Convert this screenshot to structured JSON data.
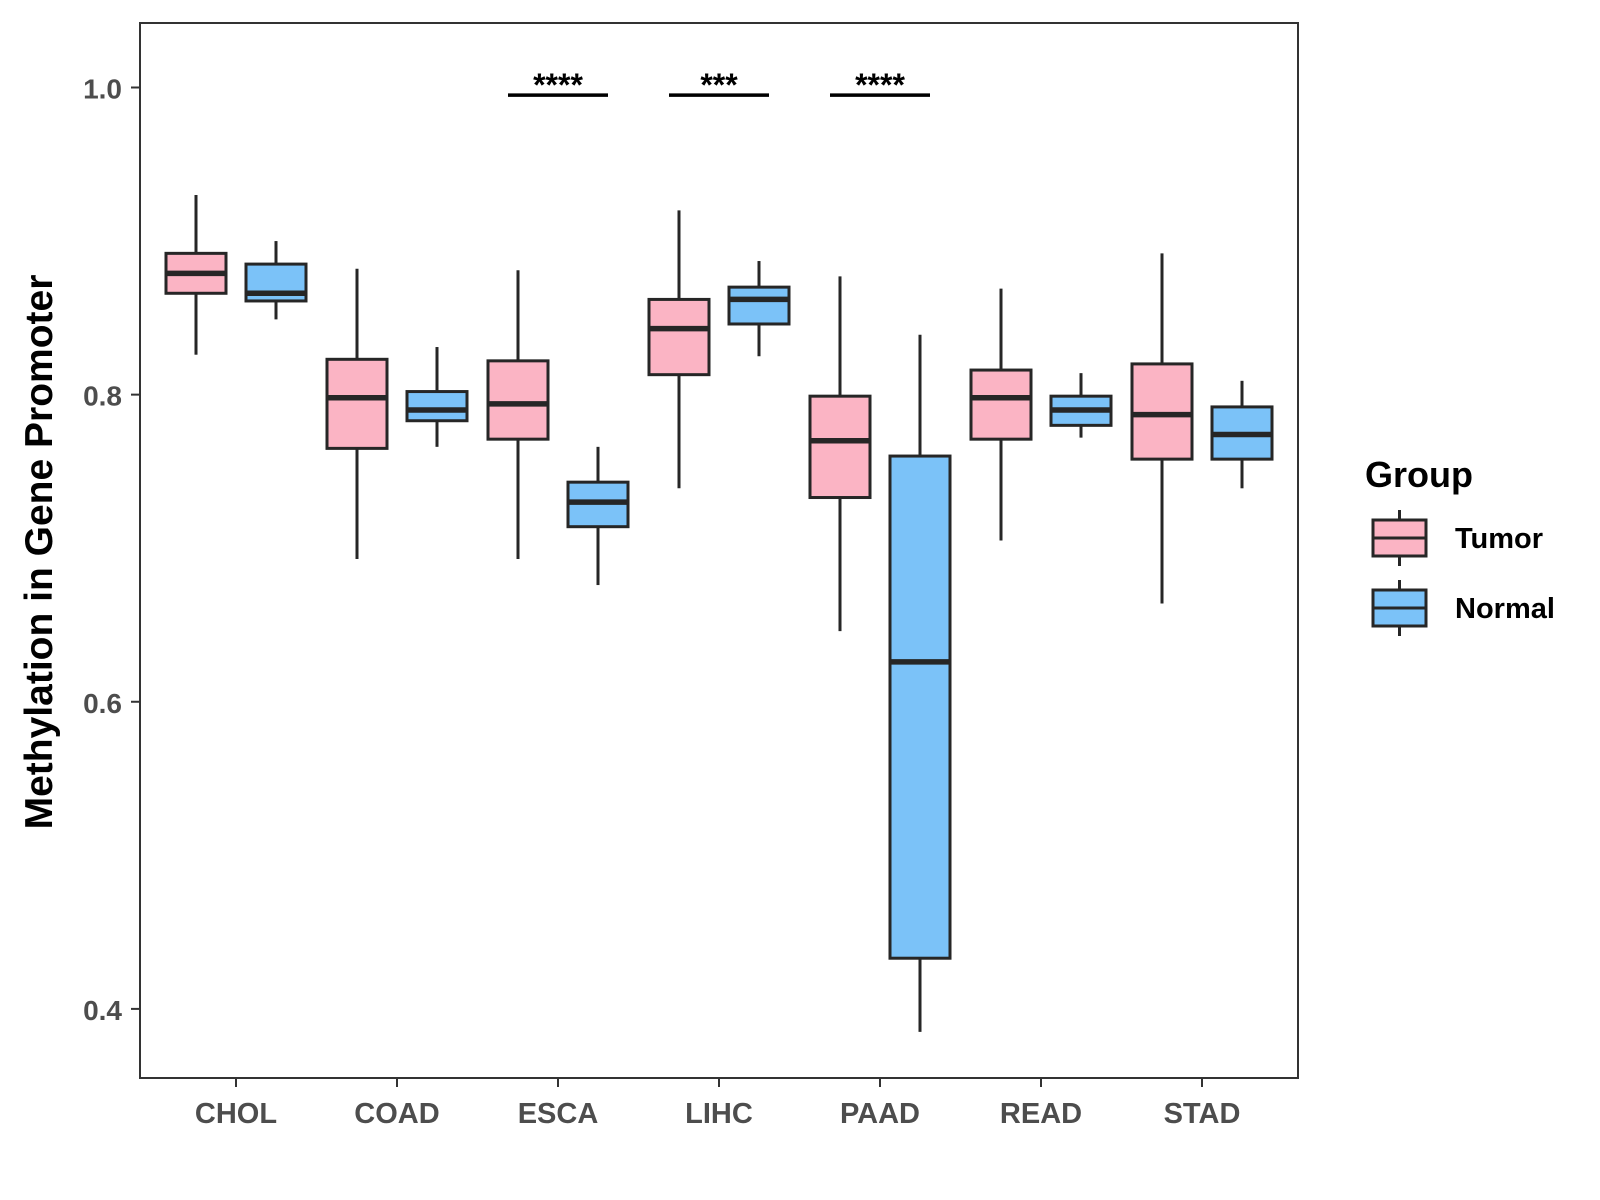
{
  "chart_data": {
    "type": "box",
    "xlabel": "",
    "ylabel": "Methylation in Gene Promoter",
    "ylim": [
      0.355,
      1.042
    ],
    "yticks": [
      0.4,
      0.6,
      0.8,
      1.0
    ],
    "ytick_labels": [
      "0.4",
      "0.6",
      "0.8",
      "1.0"
    ],
    "grid": false,
    "categories": [
      "CHOL",
      "COAD",
      "ESCA",
      "LIHC",
      "PAAD",
      "READ",
      "STAD"
    ],
    "legend": {
      "title": "Group",
      "position": "right",
      "entries": [
        "Tumor",
        "Normal"
      ]
    },
    "colors": {
      "Tumor": "#fbb4c4",
      "Normal": "#7bc2f8",
      "outline": "#262626"
    },
    "series": [
      {
        "name": "Tumor",
        "boxes": [
          {
            "category": "CHOL",
            "whisker_low": 0.826,
            "q1": 0.866,
            "median": 0.879,
            "q3": 0.892,
            "whisker_high": 0.93
          },
          {
            "category": "COAD",
            "whisker_low": 0.693,
            "q1": 0.765,
            "median": 0.798,
            "q3": 0.823,
            "whisker_high": 0.882
          },
          {
            "category": "ESCA",
            "whisker_low": 0.693,
            "q1": 0.771,
            "median": 0.794,
            "q3": 0.822,
            "whisker_high": 0.881
          },
          {
            "category": "LIHC",
            "whisker_low": 0.739,
            "q1": 0.813,
            "median": 0.843,
            "q3": 0.862,
            "whisker_high": 0.92
          },
          {
            "category": "PAAD",
            "whisker_low": 0.646,
            "q1": 0.733,
            "median": 0.77,
            "q3": 0.799,
            "whisker_high": 0.877
          },
          {
            "category": "READ",
            "whisker_low": 0.705,
            "q1": 0.771,
            "median": 0.798,
            "q3": 0.816,
            "whisker_high": 0.869
          },
          {
            "category": "STAD",
            "whisker_low": 0.664,
            "q1": 0.758,
            "median": 0.787,
            "q3": 0.82,
            "whisker_high": 0.892
          }
        ]
      },
      {
        "name": "Normal",
        "boxes": [
          {
            "category": "CHOL",
            "whisker_low": 0.849,
            "q1": 0.861,
            "median": 0.866,
            "q3": 0.885,
            "whisker_high": 0.9
          },
          {
            "category": "COAD",
            "whisker_low": 0.766,
            "q1": 0.783,
            "median": 0.79,
            "q3": 0.802,
            "whisker_high": 0.831
          },
          {
            "category": "ESCA",
            "whisker_low": 0.676,
            "q1": 0.714,
            "median": 0.73,
            "q3": 0.743,
            "whisker_high": 0.766
          },
          {
            "category": "LIHC",
            "whisker_low": 0.825,
            "q1": 0.846,
            "median": 0.862,
            "q3": 0.87,
            "whisker_high": 0.887
          },
          {
            "category": "PAAD",
            "whisker_low": 0.385,
            "q1": 0.433,
            "median": 0.626,
            "q3": 0.76,
            "whisker_high": 0.839
          },
          {
            "category": "READ",
            "whisker_low": 0.772,
            "q1": 0.78,
            "median": 0.79,
            "q3": 0.799,
            "whisker_high": 0.814
          },
          {
            "category": "STAD",
            "whisker_low": 0.739,
            "q1": 0.758,
            "median": 0.774,
            "q3": 0.792,
            "whisker_high": 0.809
          }
        ]
      }
    ],
    "annotations": [
      {
        "category": "ESCA",
        "label": "****",
        "y": 0.995
      },
      {
        "category": "LIHC",
        "label": "***",
        "y": 0.995
      },
      {
        "category": "PAAD",
        "label": "****",
        "y": 0.995
      }
    ]
  }
}
